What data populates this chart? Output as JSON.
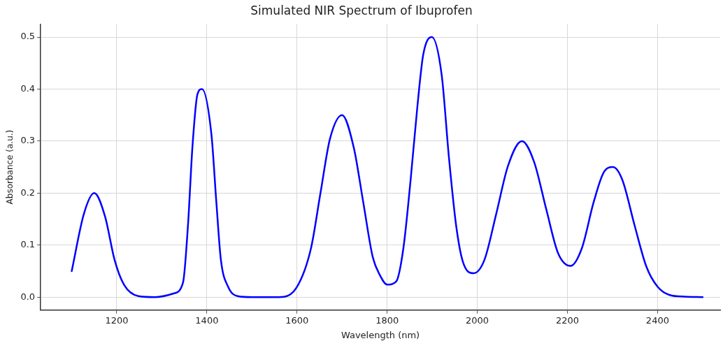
{
  "chart_data": {
    "type": "line",
    "title": "Simulated NIR Spectrum of Ibuprofen",
    "xlabel": "Wavelength (nm)",
    "ylabel": "Absorbance (a.u.)",
    "series": [
      {
        "color": "#0000ff",
        "x": [
          1100,
          1127,
          1150,
          1174,
          1195,
          1216,
          1248,
          1285,
          1326,
          1347,
          1358,
          1368,
          1379,
          1389,
          1410,
          1421,
          1431,
          1447,
          1468,
          1500,
          1560,
          1600,
          1631,
          1652,
          1673,
          1700,
          1726,
          1747,
          1768,
          1784,
          1800,
          1820,
          1836,
          1852,
          1867,
          1880,
          1899,
          1921,
          1937,
          1953,
          1968,
          1992,
          2016,
          2042,
          2068,
          2099,
          2126,
          2153,
          2179,
          2207,
          2232,
          2258,
          2280,
          2301,
          2322,
          2349,
          2375,
          2400,
          2427,
          2460,
          2500
        ],
        "values": [
          0.05,
          0.16,
          0.2,
          0.155,
          0.072,
          0.024,
          0.002,
          0,
          0.007,
          0.028,
          0.138,
          0.29,
          0.39,
          0.4,
          0.313,
          0.182,
          0.072,
          0.02,
          0.002,
          0,
          0,
          0.02,
          0.094,
          0.2,
          0.304,
          0.35,
          0.287,
          0.182,
          0.077,
          0.042,
          0.024,
          0.03,
          0.094,
          0.225,
          0.366,
          0.466,
          0.5,
          0.427,
          0.269,
          0.138,
          0.068,
          0.046,
          0.072,
          0.16,
          0.252,
          0.3,
          0.26,
          0.169,
          0.085,
          0.06,
          0.094,
          0.182,
          0.239,
          0.25,
          0.225,
          0.138,
          0.059,
          0.02,
          0.004,
          0.001,
          0
        ]
      }
    ],
    "xlim": [
      1031,
      2539
    ],
    "xticks": [
      1200,
      1400,
      1600,
      1800,
      2000,
      2200,
      2400
    ],
    "ylim": [
      -0.025,
      0.525
    ],
    "yticks": [
      {
        "value": 0,
        "label": "0.0"
      },
      {
        "value": 0.1,
        "label": "0.1"
      },
      {
        "value": 0.2,
        "label": "0.2"
      },
      {
        "value": 0.3,
        "label": "0.3"
      },
      {
        "value": 0.4,
        "label": "0.4"
      },
      {
        "value": 0.5,
        "label": "0.5"
      }
    ],
    "grid": true,
    "legend": false,
    "marker": "none",
    "line_style": "solid"
  }
}
